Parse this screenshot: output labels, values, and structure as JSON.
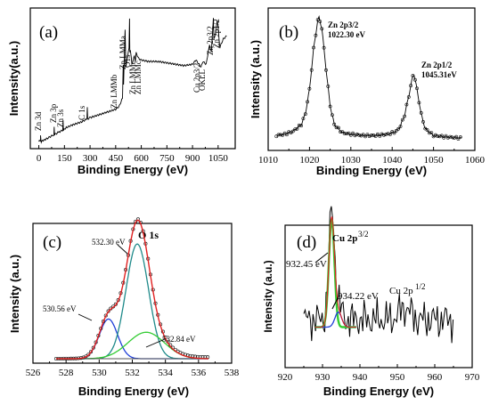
{
  "chart_data": [
    {
      "panel": "(a)",
      "type": "line",
      "xlabel": "Binding Energy (eV)",
      "ylabel": "Intensity(a.u.)",
      "xlim": [
        -50,
        1150
      ],
      "xticks": [
        "0",
        "150",
        "300",
        "450",
        "600",
        "750",
        "900",
        "1050"
      ],
      "xtick_values": [
        0,
        150,
        300,
        450,
        600,
        750,
        900,
        1050
      ],
      "series": [
        {
          "x": [
            0,
            10,
            10,
            12,
            14,
            30,
            60,
            88,
            90,
            92,
            120,
            140,
            142,
            144,
            160,
            200,
            250,
            282,
            284,
            286,
            300,
            350,
            400,
            450,
            470,
            490,
            494,
            496,
            500,
            505,
            510,
            520,
            528,
            531,
            533,
            536,
            545,
            560,
            565,
            570,
            585,
            600,
            640,
            700,
            750,
            800,
            850,
            900,
            920,
            950,
            960,
            980,
            1000,
            1010,
            1022,
            1025,
            1035,
            1045,
            1060,
            1080,
            1100
          ],
          "y": [
            0.05,
            0.06,
            0.1,
            0.06,
            0.05,
            0.06,
            0.08,
            0.1,
            0.15,
            0.1,
            0.12,
            0.13,
            0.2,
            0.13,
            0.15,
            0.17,
            0.19,
            0.21,
            0.3,
            0.21,
            0.22,
            0.24,
            0.26,
            0.28,
            0.3,
            0.36,
            0.6,
            0.45,
            0.62,
            0.85,
            0.58,
            0.66,
            0.72,
            0.93,
            0.68,
            0.7,
            0.6,
            0.66,
            0.62,
            0.68,
            0.64,
            0.63,
            0.62,
            0.62,
            0.61,
            0.6,
            0.59,
            0.6,
            0.63,
            0.58,
            0.62,
            0.6,
            0.74,
            0.68,
            0.93,
            0.78,
            0.82,
            0.92,
            0.72,
            0.78,
            0.8
          ]
        }
      ],
      "annotations": [
        "Zn 3d",
        "Zn 3p",
        "Zn 3s",
        "C 1s",
        "Zn LMMb",
        "Zn LMMa",
        "O1s",
        "Zn LMMc",
        "Zn LMMc",
        "Cu 2p3/2",
        "OKLL",
        "Zn 2p3/2",
        "Zn 2p1/2"
      ]
    },
    {
      "panel": "(b)",
      "type": "line",
      "xlabel": "Binding Energy (eV)",
      "ylabel": "Intensity (a.u.)",
      "xlim": [
        1010,
        1060
      ],
      "xticks": [
        "1010",
        "1020",
        "1030",
        "1040",
        "1050",
        "1060"
      ],
      "xtick_values": [
        1010,
        1020,
        1030,
        1040,
        1050,
        1060
      ],
      "series": [
        {
          "x": [
            1012,
            1014,
            1016,
            1018,
            1019,
            1020,
            1021,
            1022,
            1022.3,
            1023,
            1024,
            1025,
            1026,
            1028,
            1030,
            1033,
            1036,
            1039,
            1041,
            1042,
            1043,
            1044,
            1045,
            1045.3,
            1046,
            1047,
            1048,
            1050,
            1053,
            1057
          ],
          "y": [
            0.11,
            0.12,
            0.14,
            0.19,
            0.27,
            0.45,
            0.75,
            0.96,
            0.98,
            0.9,
            0.6,
            0.33,
            0.19,
            0.13,
            0.12,
            0.11,
            0.11,
            0.12,
            0.14,
            0.18,
            0.26,
            0.4,
            0.55,
            0.56,
            0.45,
            0.27,
            0.16,
            0.11,
            0.1,
            0.09
          ]
        }
      ],
      "annotations": [
        "Zn 2p3/2",
        "1022.30 eV",
        "Zn 2p1/2",
        "1045.31eV"
      ]
    },
    {
      "panel": "(c)",
      "type": "line",
      "title": "O 1s",
      "xlabel": "Binding Energy (eV)",
      "ylabel": "Intensity (a.u.)",
      "xlim": [
        526,
        538
      ],
      "xticks": [
        "526",
        "528",
        "530",
        "532",
        "534",
        "536",
        "538"
      ],
      "xtick_values": [
        526,
        528,
        530,
        532,
        534,
        536,
        538
      ],
      "components": [
        {
          "center": 530.56,
          "amp": 0.27,
          "sigma": 0.55,
          "color": "#1f3fd8"
        },
        {
          "center": 532.3,
          "amp": 0.78,
          "sigma": 0.68,
          "color": "#1f8a8a"
        },
        {
          "center": 532.84,
          "amp": 0.18,
          "sigma": 1.1,
          "color": "#33cc33"
        }
      ],
      "baseline": 0.03,
      "annotations": [
        "532.30 eV",
        "530.56 eV",
        "532.84 eV"
      ]
    },
    {
      "panel": "(d)",
      "type": "line",
      "xlabel": "Binding Energy (eV)",
      "ylabel": "Intensity (a.u.)",
      "xlim": [
        920,
        970
      ],
      "xticks": [
        "920",
        "930",
        "940",
        "950",
        "960",
        "970"
      ],
      "xtick_values": [
        920,
        930,
        940,
        950,
        960,
        970
      ],
      "components": [
        {
          "center": 932.45,
          "amp": 0.72,
          "sigma": 0.75,
          "color": "#33cc33"
        },
        {
          "center": 934.22,
          "amp": 0.1,
          "sigma": 0.9,
          "color": "#1f3fd8"
        }
      ],
      "noisy_start": 925,
      "noisy_end": 965,
      "annotations": [
        "Cu 2p",
        "3/2",
        "932.45 eV",
        "934.22 eV",
        "Cu 2p",
        "1/2"
      ]
    }
  ],
  "colors": {
    "fit_red": "#e02020",
    "data": "#000000",
    "peak_a": "#1f3fd8",
    "peak_b": "#1f8a8a",
    "peak_c": "#33cc33"
  }
}
